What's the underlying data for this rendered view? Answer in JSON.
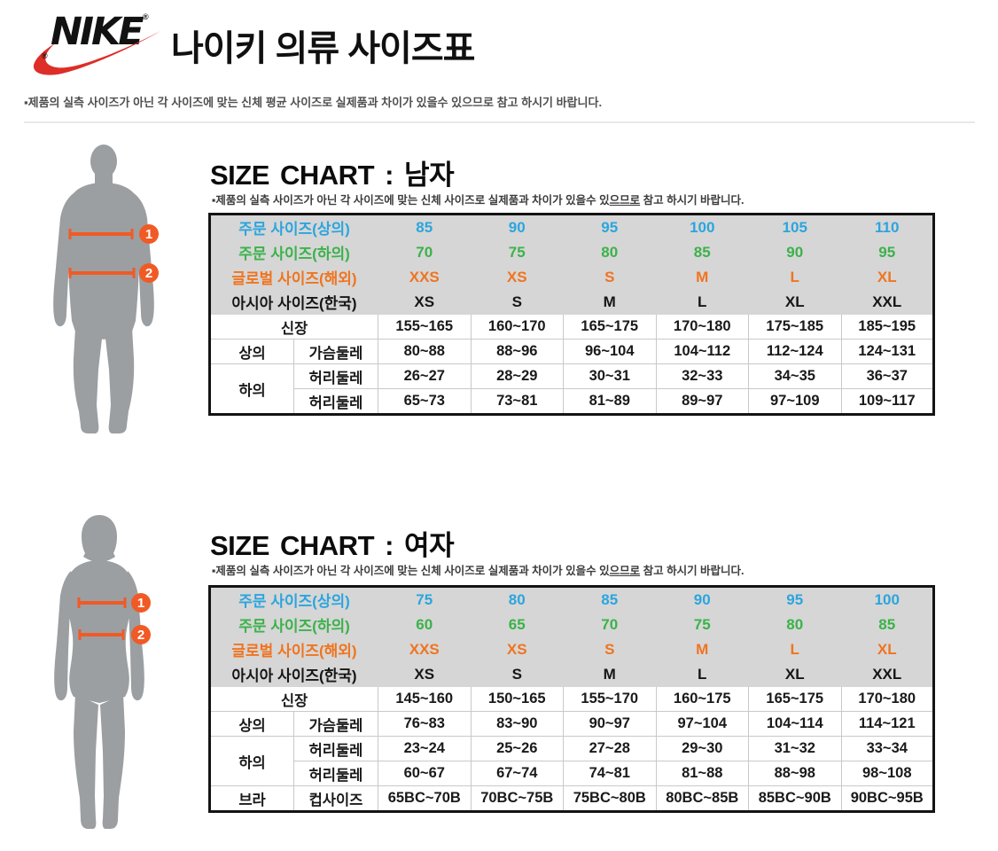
{
  "header": {
    "brand": "NIKE",
    "reg_mark": "®",
    "title": "나이키 의류 사이즈표",
    "disclaimer": "▪제품의 실측 사이즈가 아닌 각 사이즈에 맞는 신체 평균 사이즈로 실제품과 차이가 있을수 있으므로 참고 하시기 바랍니다."
  },
  "colors": {
    "blue": "#2BA5DE",
    "green": "#3BB24A",
    "orange": "#F0741F",
    "accent_line": "#F15A25",
    "silhouette_gray": "#9B9FA2",
    "table_header_bg": "#D6D6D6",
    "nike_red": "#DD2E27"
  },
  "sections": {
    "men": {
      "title": "SIZE CHART : 남자",
      "subtitle_pre": "▪제품의 실측 사이즈가 아닌 각 사이즈에 맞는 신체 사이즈로 실제품과 차이가 있을수 있",
      "subtitle_u": "으므로",
      "subtitle_post": " 참고 하시기 바랍니다.",
      "markers": [
        "1",
        "2"
      ],
      "table": {
        "header_rows": [
          {
            "label": "주문 사이즈(상의)",
            "color_key": "blue",
            "values": [
              "85",
              "90",
              "95",
              "100",
              "105",
              "110"
            ]
          },
          {
            "label": "주문 사이즈(하의)",
            "color_key": "green",
            "values": [
              "70",
              "75",
              "80",
              "85",
              "90",
              "95"
            ]
          },
          {
            "label": "글로벌 사이즈(해외)",
            "color_key": "orange",
            "values": [
              "XXS",
              "XS",
              "S",
              "M",
              "L",
              "XL"
            ]
          },
          {
            "label": "아시아 사이즈(한국)",
            "color_key": "black",
            "values": [
              "XS",
              "S",
              "M",
              "L",
              "XL",
              "XXL"
            ]
          }
        ],
        "body_rows": [
          {
            "cells": [
              {
                "text": "신장",
                "colspan": 2
              }
            ],
            "values": [
              "155~165",
              "160~170",
              "165~175",
              "170~180",
              "175~185",
              "185~195"
            ]
          },
          {
            "cells": [
              {
                "text": "상의"
              },
              {
                "text": "가슴둘레"
              }
            ],
            "values": [
              "80~88",
              "88~96",
              "96~104",
              "104~112",
              "112~124",
              "124~131"
            ]
          },
          {
            "cells": [
              {
                "text": "하의",
                "rowspan": 2
              },
              {
                "text": "허리둘레"
              }
            ],
            "values": [
              "26~27",
              "28~29",
              "30~31",
              "32~33",
              "34~35",
              "36~37"
            ]
          },
          {
            "cells": [
              {
                "text": "허리둘레"
              }
            ],
            "values": [
              "65~73",
              "73~81",
              "81~89",
              "89~97",
              "97~109",
              "109~117"
            ]
          }
        ]
      }
    },
    "women": {
      "title": "SIZE CHART : 여자",
      "subtitle_pre": "▪제품의 실측 사이즈가 아닌 각 사이즈에 맞는 신체 사이즈로 실제품과 차이가 있을수 있",
      "subtitle_u": "으므로",
      "subtitle_post": " 참고 하시기 바랍니다.",
      "markers": [
        "1",
        "2"
      ],
      "table": {
        "header_rows": [
          {
            "label": "주문 사이즈(상의)",
            "color_key": "blue",
            "values": [
              "75",
              "80",
              "85",
              "90",
              "95",
              "100"
            ]
          },
          {
            "label": "주문 사이즈(하의)",
            "color_key": "green",
            "values": [
              "60",
              "65",
              "70",
              "75",
              "80",
              "85"
            ]
          },
          {
            "label": "글로벌 사이즈(해외)",
            "color_key": "orange",
            "values": [
              "XXS",
              "XS",
              "S",
              "M",
              "L",
              "XL"
            ]
          },
          {
            "label": "아시아 사이즈(한국)",
            "color_key": "black",
            "values": [
              "XS",
              "S",
              "M",
              "L",
              "XL",
              "XXL"
            ]
          }
        ],
        "body_rows": [
          {
            "cells": [
              {
                "text": "신장",
                "colspan": 2
              }
            ],
            "values": [
              "145~160",
              "150~165",
              "155~170",
              "160~175",
              "165~175",
              "170~180"
            ]
          },
          {
            "cells": [
              {
                "text": "상의"
              },
              {
                "text": "가슴둘레"
              }
            ],
            "values": [
              "76~83",
              "83~90",
              "90~97",
              "97~104",
              "104~114",
              "114~121"
            ]
          },
          {
            "cells": [
              {
                "text": "하의",
                "rowspan": 2
              },
              {
                "text": "허리둘레"
              }
            ],
            "values": [
              "23~24",
              "25~26",
              "27~28",
              "29~30",
              "31~32",
              "33~34"
            ]
          },
          {
            "cells": [
              {
                "text": "허리둘레"
              }
            ],
            "values": [
              "60~67",
              "67~74",
              "74~81",
              "81~88",
              "88~98",
              "98~108"
            ]
          },
          {
            "cells": [
              {
                "text": "브라"
              },
              {
                "text": "컵사이즈"
              }
            ],
            "values": [
              "65BC~70B",
              "70BC~75B",
              "75BC~80B",
              "80BC~85B",
              "85BC~90B",
              "90BC~95B"
            ]
          }
        ]
      }
    }
  }
}
